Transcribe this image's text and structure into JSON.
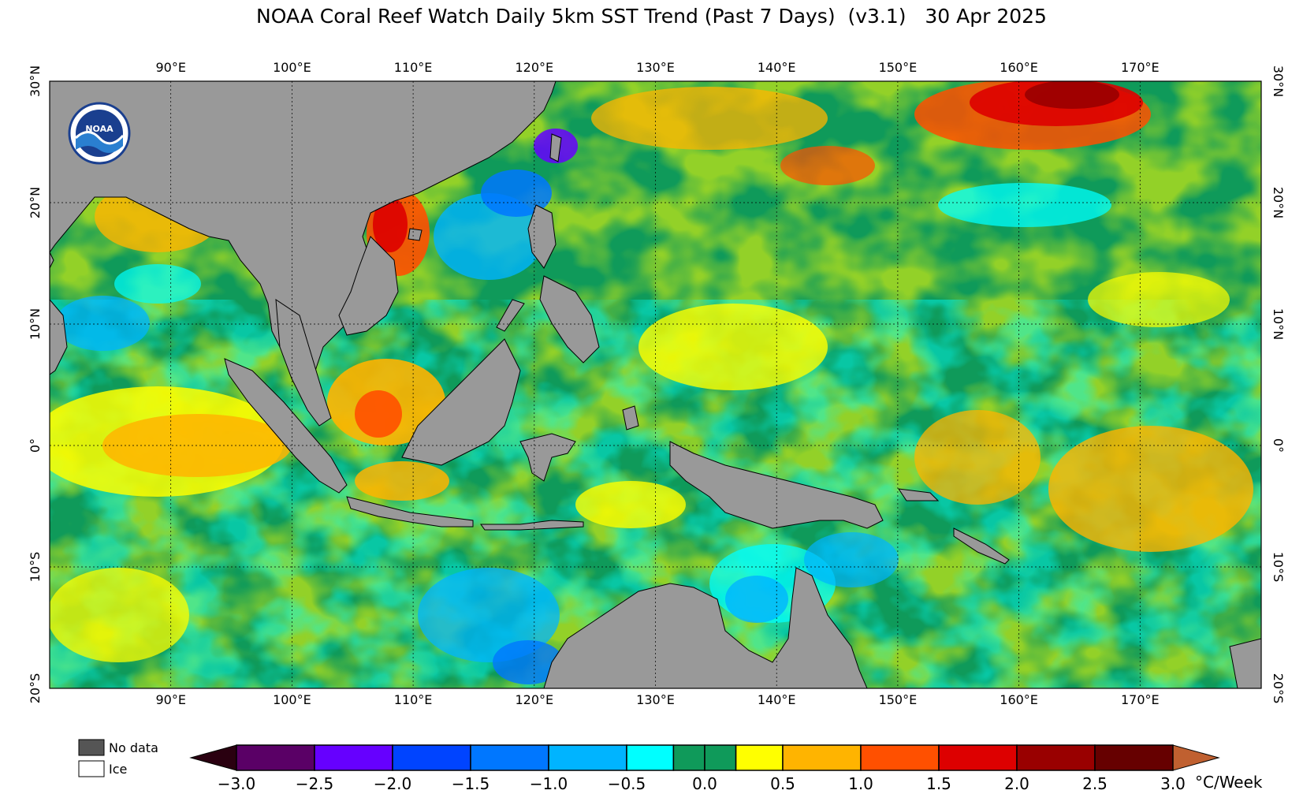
{
  "title": "NOAA Coral Reef Watch Daily 5km SST Trend (Past 7 Days)  (v3.1)   30 Apr 2025",
  "logo": {
    "text": "NOAA",
    "icon": "noaa-logo-icon"
  },
  "map": {
    "lon_range": [
      80,
      180
    ],
    "lat_range": [
      -20,
      30
    ],
    "lon_ticks": [
      "90°E",
      "100°E",
      "110°E",
      "120°E",
      "130°E",
      "140°E",
      "150°E",
      "160°E",
      "170°E"
    ],
    "lat_ticks": [
      "30°N",
      "20°N",
      "10°N",
      "0°",
      "10°S",
      "20°S"
    ],
    "lon_tick_values": [
      90,
      100,
      110,
      120,
      130,
      140,
      150,
      160,
      170
    ],
    "lat_tick_values": [
      30,
      20,
      10,
      0,
      -10,
      -20
    ],
    "grid": true,
    "colors": {
      "land": "#999999",
      "ocean_base": "#0f9a5a"
    }
  },
  "legend": {
    "no_data_label": "No data",
    "ice_label": "Ice",
    "no_data_color": "#555555",
    "ice_color": "#ffffff"
  },
  "colorbar": {
    "unit": "°C/Week",
    "tick_labels": [
      "−3.0",
      "−2.5",
      "−2.0",
      "−1.5",
      "−1.0",
      "−0.5",
      "0.0",
      "0.5",
      "1.0",
      "1.5",
      "2.0",
      "2.5",
      "3.0"
    ],
    "min_extend_color": "#2a0010",
    "max_extend_color": "#c06030",
    "bins": [
      {
        "from": -3.0,
        "to": -2.5,
        "color": "#5a0066"
      },
      {
        "from": -2.5,
        "to": -2.0,
        "color": "#6600ff"
      },
      {
        "from": -2.0,
        "to": -1.5,
        "color": "#0044ff"
      },
      {
        "from": -1.5,
        "to": -1.0,
        "color": "#0077ff"
      },
      {
        "from": -1.0,
        "to": -0.5,
        "color": "#00b4ff"
      },
      {
        "from": -0.5,
        "to": -0.2,
        "color": "#00ffff"
      },
      {
        "from": -0.2,
        "to": 0.0,
        "color": "#0f9a5a"
      },
      {
        "from": 0.0,
        "to": 0.2,
        "color": "#0f9a5a"
      },
      {
        "from": 0.2,
        "to": 0.5,
        "color": "#ffff00"
      },
      {
        "from": 0.5,
        "to": 1.0,
        "color": "#ffb400"
      },
      {
        "from": 1.0,
        "to": 1.5,
        "color": "#ff5000"
      },
      {
        "from": 1.5,
        "to": 2.0,
        "color": "#dd0000"
      },
      {
        "from": 2.0,
        "to": 2.5,
        "color": "#990000"
      },
      {
        "from": 2.5,
        "to": 3.0,
        "color": "#660000"
      }
    ]
  }
}
